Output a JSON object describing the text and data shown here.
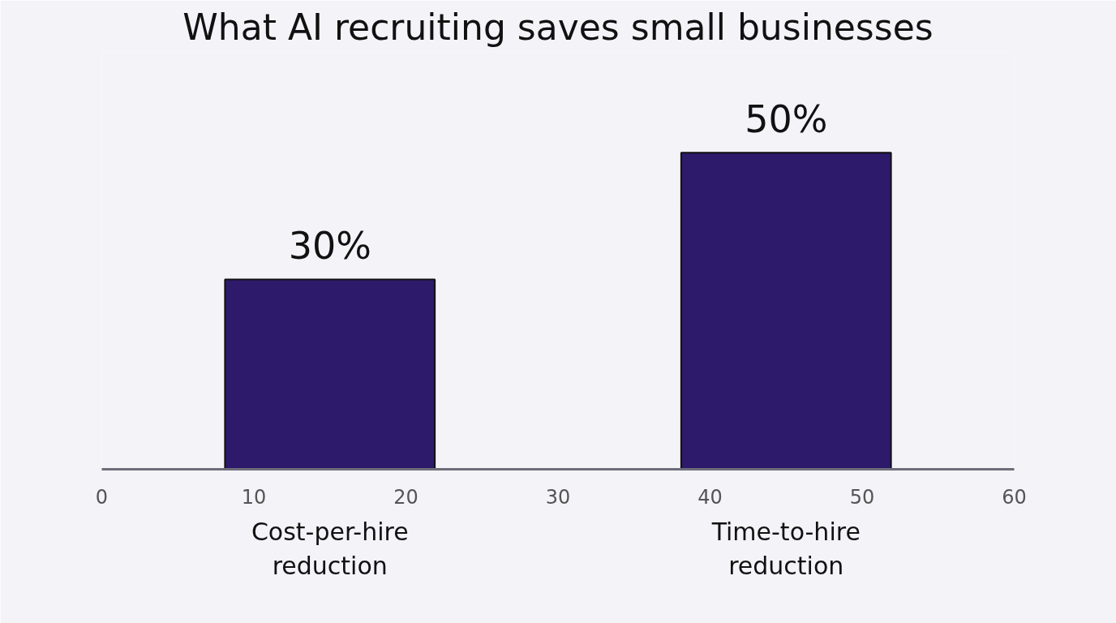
{
  "chart_data": {
    "type": "bar",
    "title": "What AI recruiting saves small businesses",
    "categories": [
      "Cost-per-hire reduction",
      "Time-to-hire reduction"
    ],
    "values": [
      30,
      50
    ],
    "value_labels": [
      "30%",
      "50%"
    ],
    "color": "#2e1a6b",
    "annotations": [
      "0",
      "10",
      "20",
      "30",
      "40",
      "50",
      "60"
    ],
    "grid": false,
    "tick_labels": "x"
  }
}
